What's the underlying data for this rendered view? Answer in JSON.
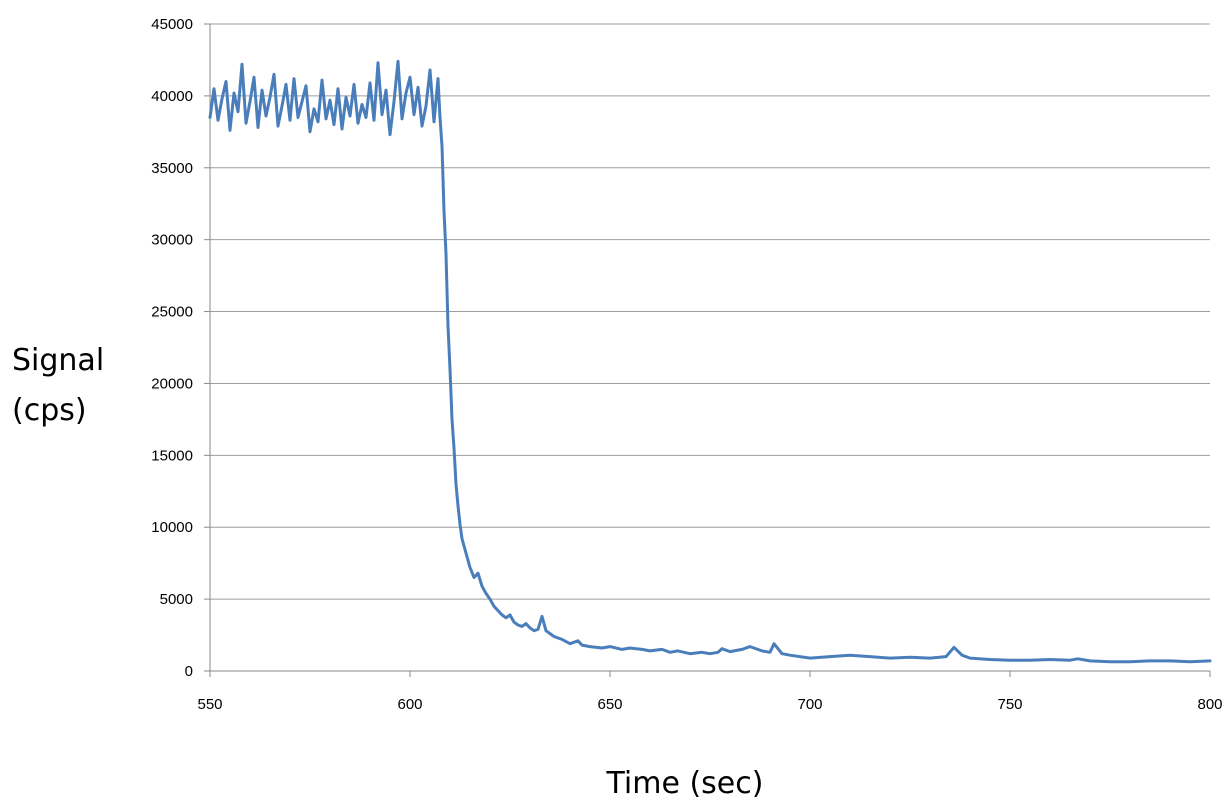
{
  "chart_data": {
    "type": "line",
    "title": "",
    "xlabel": "Time (sec)",
    "ylabel_lines": [
      "Signal",
      "(cps)"
    ],
    "xlim": [
      550,
      800
    ],
    "ylim": [
      0,
      45000
    ],
    "x_ticks": [
      550,
      600,
      650,
      700,
      750,
      800
    ],
    "y_ticks": [
      0,
      5000,
      10000,
      15000,
      20000,
      25000,
      30000,
      35000,
      40000,
      45000
    ],
    "grid": "horizontal",
    "legend": "none",
    "line_color": "#4a7ebb",
    "series": [
      {
        "x": [
          550,
          551,
          552,
          553,
          554,
          555,
          556,
          557,
          558,
          559,
          560,
          561,
          562,
          563,
          564,
          565,
          566,
          567,
          568,
          569,
          570,
          571,
          572,
          573,
          574,
          575,
          576,
          577,
          578,
          579,
          580,
          581,
          582,
          583,
          584,
          585,
          586,
          587,
          588,
          589,
          590,
          591,
          592,
          593,
          594,
          595,
          596,
          597,
          598,
          599,
          600,
          601,
          602,
          603,
          604,
          605,
          606,
          607,
          607.5,
          608,
          608.5,
          609,
          609.5,
          610,
          610.5,
          611,
          611.5,
          612,
          612.5,
          613,
          614,
          615,
          616,
          617,
          618,
          619,
          620,
          621,
          622,
          623,
          624,
          625,
          626,
          627,
          628,
          629,
          630,
          631,
          632,
          633,
          634,
          635,
          636,
          637,
          638,
          640,
          642,
          643,
          645,
          648,
          650,
          653,
          655,
          658,
          660,
          663,
          665,
          667,
          670,
          673,
          675,
          677,
          678,
          680,
          683,
          685,
          688,
          690,
          691,
          693,
          695,
          700,
          705,
          710,
          715,
          720,
          725,
          730,
          734,
          736,
          738,
          740,
          745,
          750,
          755,
          760,
          765,
          767,
          770,
          775,
          780,
          785,
          790,
          795,
          800
        ],
        "values": [
          38500,
          40500,
          38300,
          39800,
          41000,
          37600,
          40200,
          38900,
          42200,
          38100,
          39600,
          41300,
          37800,
          40400,
          38600,
          39900,
          41500,
          37900,
          39300,
          40800,
          38300,
          41200,
          38500,
          39600,
          40700,
          37500,
          39100,
          38200,
          41100,
          38400,
          39700,
          38000,
          40500,
          37700,
          39900,
          38600,
          40800,
          38100,
          39400,
          38500,
          40900,
          38300,
          42300,
          38700,
          40400,
          37300,
          39600,
          42400,
          38400,
          40200,
          41300,
          38700,
          40600,
          37900,
          39300,
          41800,
          38200,
          41200,
          38500,
          36500,
          32000,
          29000,
          24000,
          21000,
          17500,
          15500,
          13000,
          11500,
          10200,
          9200,
          8200,
          7200,
          6500,
          6800,
          5900,
          5400,
          5000,
          4500,
          4200,
          3900,
          3700,
          3900,
          3400,
          3200,
          3100,
          3300,
          3000,
          2800,
          2900,
          3800,
          2800,
          2600,
          2400,
          2300,
          2200,
          1900,
          2100,
          1800,
          1700,
          1600,
          1700,
          1500,
          1600,
          1500,
          1400,
          1500,
          1300,
          1400,
          1200,
          1300,
          1200,
          1300,
          1550,
          1350,
          1500,
          1700,
          1400,
          1300,
          1900,
          1200,
          1100,
          900,
          1000,
          1100,
          1000,
          900,
          950,
          900,
          1000,
          1650,
          1100,
          900,
          800,
          750,
          750,
          800,
          750,
          850,
          700,
          650,
          650,
          700,
          700,
          650,
          700
        ]
      }
    ]
  }
}
